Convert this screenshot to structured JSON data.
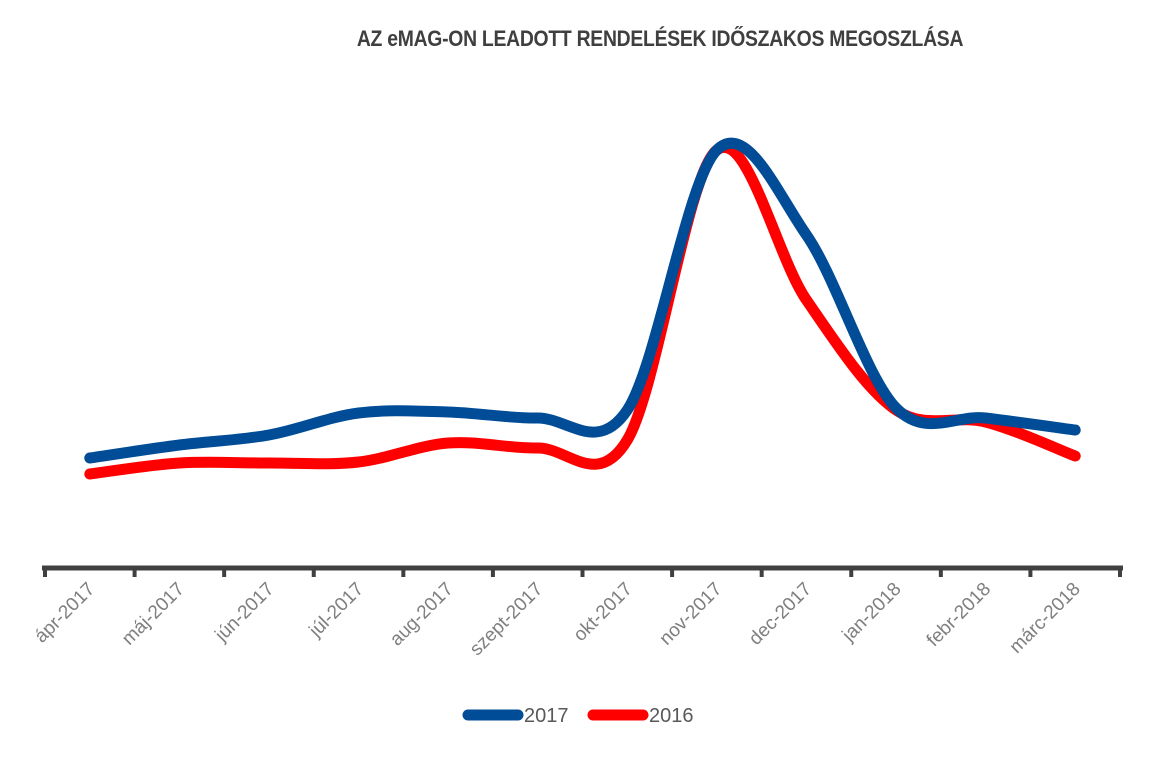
{
  "chart_data": {
    "type": "line",
    "title": "AZ eMAG-ON LEADOTT RENDELÉSEK IDŐSZAKOS MEGOSZLÁSA",
    "xlabel": "",
    "ylabel": "",
    "categories": [
      "ápr-2017",
      "máj-2017",
      "jún-2017",
      "júl-2017",
      "aug-2017",
      "szept-2017",
      "okt-2017",
      "nov-2017",
      "dec-2017",
      "jan-2018",
      "febr-2018",
      "márc-2018"
    ],
    "ylim": [
      0,
      440
    ],
    "grid": false,
    "legend_position": "bottom",
    "series": [
      {
        "name": "2017",
        "color": "#004c97",
        "values": [
          110,
          123,
          133,
          155,
          156,
          150,
          158,
          418,
          333,
          160,
          150,
          138
        ]
      },
      {
        "name": "2016",
        "color": "#ff0000",
        "values": [
          94,
          105,
          105,
          106,
          125,
          120,
          128,
          418,
          268,
          158,
          146,
          112
        ]
      }
    ]
  }
}
